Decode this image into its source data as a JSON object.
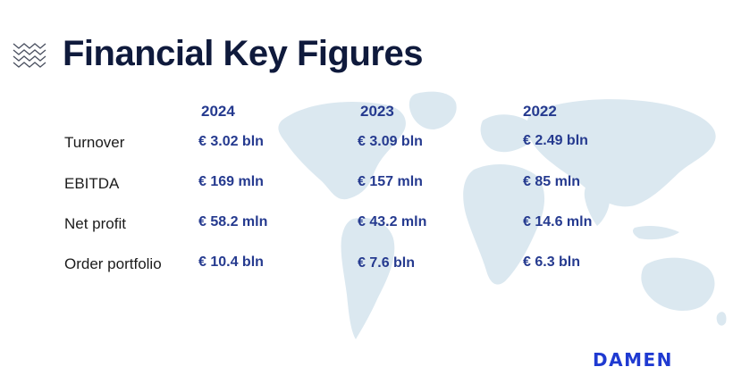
{
  "title": "Financial Key Figures",
  "icon": "chevron-stack-icon",
  "colors": {
    "title": "#0f1a3c",
    "accent": "#253a8f",
    "map": "#dbe8f0",
    "logo": "#1f3ad1"
  },
  "years": [
    "2024",
    "2023",
    "2022"
  ],
  "rows": [
    {
      "label": "Turnover",
      "values": [
        "€ 3.02 bln",
        "€ 3.09 bln",
        "€ 2.49 bln"
      ]
    },
    {
      "label": "EBITDA",
      "values": [
        "€ 169 mln",
        "€ 157 mln",
        "€ 85 mln"
      ]
    },
    {
      "label": "Net profit",
      "values": [
        "€ 58.2 mln",
        "€ 43.2 mln",
        "€ 14.6 mln"
      ]
    },
    {
      "label": "Order portfolio",
      "values": [
        "€ 10.4 bln",
        "€ 7.6 bln",
        "€ 6.3 bln"
      ]
    }
  ],
  "logo": "DAMEN"
}
